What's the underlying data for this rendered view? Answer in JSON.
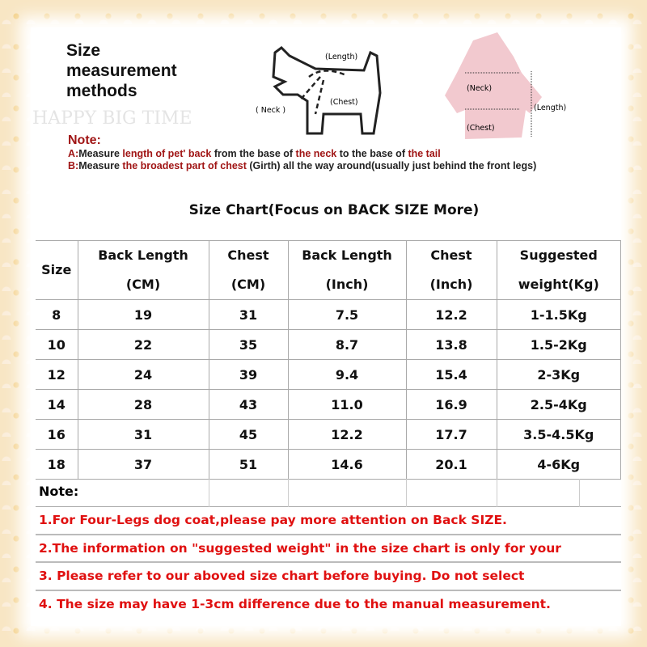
{
  "watermark": "HAPPY BIG TIME",
  "heading": [
    "Size",
    "measurement",
    "methods"
  ],
  "diagram": {
    "dog": {
      "length": "(Length)",
      "neck": "( Neck )",
      "chest": "(Chest)"
    },
    "coat": {
      "neck": "(Neck)",
      "length": "(Length)",
      "chest": "(Chest)"
    },
    "coat_color": "#f2c9cf"
  },
  "note": {
    "title": "Note:",
    "a": {
      "prefix": "A:",
      "t1": "Measure ",
      "r1": "length of pet' back",
      "t2": " from the base of ",
      "r2": "the neck",
      "t3": " to the base of ",
      "r3": "the tail"
    },
    "b": {
      "prefix": "B:",
      "t1": "Measure ",
      "r1": "the broadest part of chest",
      "t2": " (Girth) all the way around(usually just behind the front legs)"
    }
  },
  "chart_title": "Size Chart(Focus on BACK SIZE More)",
  "table": {
    "headers": [
      [
        "Size"
      ],
      [
        "Back Length",
        "(CM)"
      ],
      [
        "Chest",
        "(CM)"
      ],
      [
        "Back Length",
        "(Inch)"
      ],
      [
        "Chest",
        "(Inch)"
      ],
      [
        "Suggested",
        "weight(Kg)"
      ]
    ],
    "rows": [
      [
        "8",
        "19",
        "31",
        "7.5",
        "12.2",
        "1-1.5Kg"
      ],
      [
        "10",
        "22",
        "35",
        "8.7",
        "13.8",
        "1.5-2Kg"
      ],
      [
        "12",
        "24",
        "39",
        "9.4",
        "15.4",
        "2-3Kg"
      ],
      [
        "14",
        "28",
        "43",
        "11.0",
        "16.9",
        "2.5-4Kg"
      ],
      [
        "16",
        "31",
        "45",
        "12.2",
        "17.7",
        "3.5-4.5Kg"
      ],
      [
        "18",
        "37",
        "51",
        "14.6",
        "20.1",
        "4-6Kg"
      ]
    ]
  },
  "notes": {
    "title": "Note:",
    "items": [
      "1.For Four-Legs dog coat,please pay more attention on Back SIZE.",
      "2.The information on \"suggested weight\" in the size chart is only for your",
      "3. Please refer to our aboved size chart before buying. Do not select",
      "4. The size may have 1-3cm difference due to the manual measurement."
    ]
  },
  "colors": {
    "note_red": "#a01515",
    "notes_red": "#e01010"
  }
}
